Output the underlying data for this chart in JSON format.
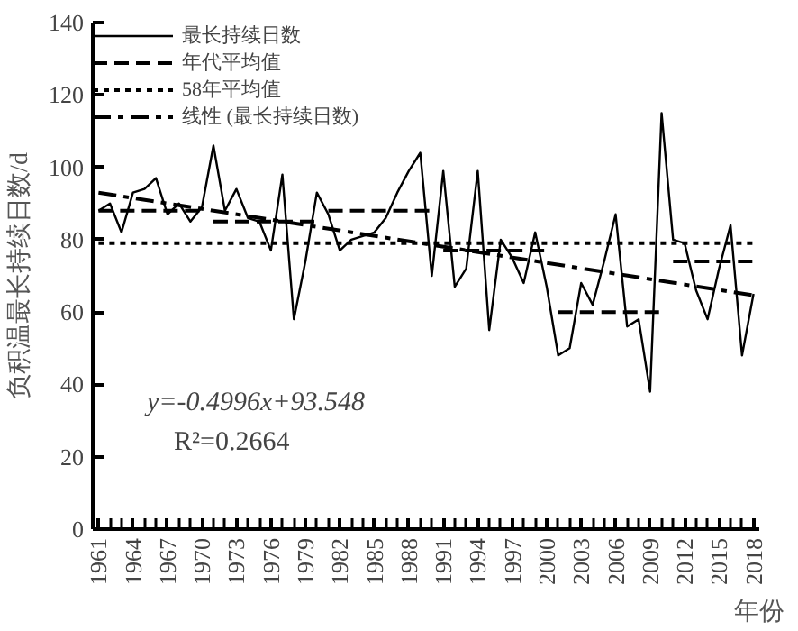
{
  "chart_data": {
    "type": "line",
    "xlabel": "年份",
    "ylabel": "负积温最长持续日数/d",
    "x": [
      1961,
      1962,
      1963,
      1964,
      1965,
      1966,
      1967,
      1968,
      1969,
      1970,
      1971,
      1972,
      1973,
      1974,
      1975,
      1976,
      1977,
      1978,
      1979,
      1980,
      1981,
      1982,
      1983,
      1984,
      1985,
      1986,
      1987,
      1988,
      1989,
      1990,
      1991,
      1992,
      1993,
      1994,
      1995,
      1996,
      1997,
      1998,
      1999,
      2000,
      2001,
      2002,
      2003,
      2004,
      2005,
      2006,
      2007,
      2008,
      2009,
      2010,
      2011,
      2012,
      2013,
      2014,
      2015,
      2016,
      2017,
      2018
    ],
    "series": [
      {
        "name": "最长持续日数",
        "color": "#000000",
        "line_style": "solid",
        "values": [
          88,
          90,
          82,
          93,
          94,
          97,
          87,
          90,
          85,
          89,
          106,
          88,
          94,
          86,
          85,
          77,
          98,
          58,
          74,
          93,
          87,
          77,
          80,
          81,
          82,
          86,
          93,
          99,
          104,
          70,
          99,
          67,
          72,
          99,
          55,
          80,
          75,
          68,
          82,
          67,
          48,
          50,
          68,
          62,
          74,
          87,
          56,
          58,
          38,
          115,
          80,
          79,
          66,
          58,
          72,
          84,
          48,
          65
        ]
      },
      {
        "name": "年代平均值",
        "color": "#000000",
        "line_style": "dashed",
        "x": [
          1961,
          1970,
          1970.5,
          1971,
          1980,
          1980.5,
          1981,
          1990,
          1990.5,
          1991,
          2000,
          2000.5,
          2001,
          2010,
          2010.5,
          2011,
          2018
        ],
        "values": [
          88,
          88,
          null,
          85,
          85,
          null,
          88,
          88,
          null,
          77,
          77,
          null,
          60,
          60,
          null,
          74,
          74
        ]
      },
      {
        "name": "58年平均值",
        "color": "#000000",
        "line_style": "dotted",
        "x": [
          1961,
          2018
        ],
        "values": [
          79,
          79
        ]
      },
      {
        "name": "线性 (最长持续日数)",
        "color": "#000000",
        "line_style": "dashdot",
        "x": [
          1961,
          2018
        ],
        "values": [
          93.0,
          64.6
        ]
      }
    ],
    "annotations": [
      "y=-0.4996x+93.548",
      "R²=0.2664"
    ],
    "xlim": [
      1960.5,
      2018.5
    ],
    "xticks": [
      1961,
      1964,
      1967,
      1970,
      1973,
      1976,
      1979,
      1982,
      1985,
      1988,
      1991,
      1994,
      1997,
      2000,
      2003,
      2006,
      2009,
      2012,
      2015,
      2018
    ],
    "ylim": [
      0,
      140
    ],
    "yticks": [
      0,
      20,
      40,
      60,
      80,
      100,
      120,
      140
    ],
    "legend": "top",
    "grid": false,
    "marker": "none"
  }
}
